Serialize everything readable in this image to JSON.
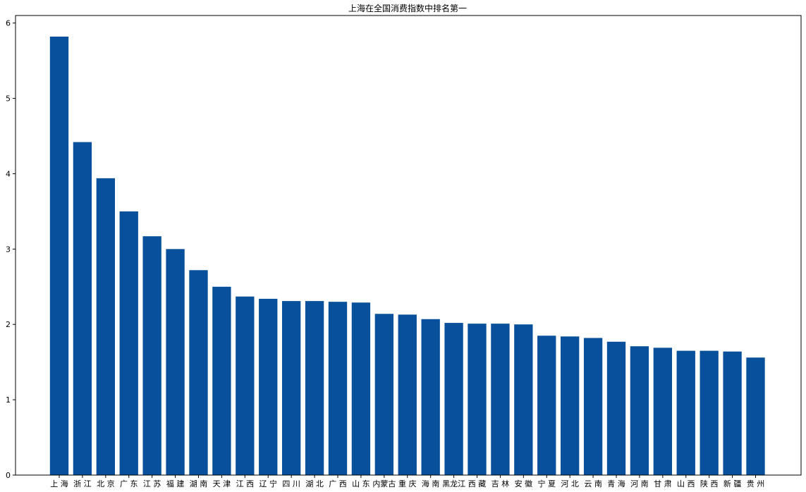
{
  "chart_data": {
    "type": "bar",
    "title": "上海在全国消费指数中排名第一",
    "xlabel": "",
    "ylabel": "",
    "ylim": [
      0,
      6.1
    ],
    "yticks": [
      0,
      1,
      2,
      3,
      4,
      5,
      6
    ],
    "grid": false,
    "bar_color": "#08509b",
    "categories": [
      "上海",
      "浙江",
      "北京",
      "广东",
      "江苏",
      "福建",
      "湖南",
      "天津",
      "江西",
      "辽宁",
      "四川",
      "湖北",
      "广西",
      "山东",
      "内蒙古",
      "重庆",
      "海南",
      "黑龙江",
      "西藏",
      "吉林",
      "安徽",
      "宁夏",
      "河北",
      "云南",
      "青海",
      "河南",
      "甘肃",
      "山西",
      "陕西",
      "新疆",
      "贵州"
    ],
    "tick_labels": [
      "上 海",
      "浙 江",
      "北 京",
      "广 东",
      "江 苏",
      "福 建",
      "湖 南",
      "天 津",
      "江 西",
      "辽 宁",
      "四 川",
      "湖 北",
      "广 西",
      "山 东",
      "内蒙古",
      "重 庆",
      "海 南",
      "黑龙江",
      "西 藏",
      "吉 林",
      "安 徽",
      "宁 夏",
      "河 北",
      "云 南",
      "青 海",
      "河 南",
      "甘 肃",
      "山 西",
      "陕 西",
      "新 疆",
      "贵 州"
    ],
    "values": [
      5.82,
      4.42,
      3.94,
      3.5,
      3.17,
      3.0,
      2.72,
      2.5,
      2.37,
      2.34,
      2.31,
      2.31,
      2.3,
      2.29,
      2.14,
      2.13,
      2.07,
      2.02,
      2.01,
      2.01,
      2.0,
      1.85,
      1.84,
      1.82,
      1.77,
      1.71,
      1.69,
      1.65,
      1.65,
      1.64,
      1.56
    ]
  }
}
